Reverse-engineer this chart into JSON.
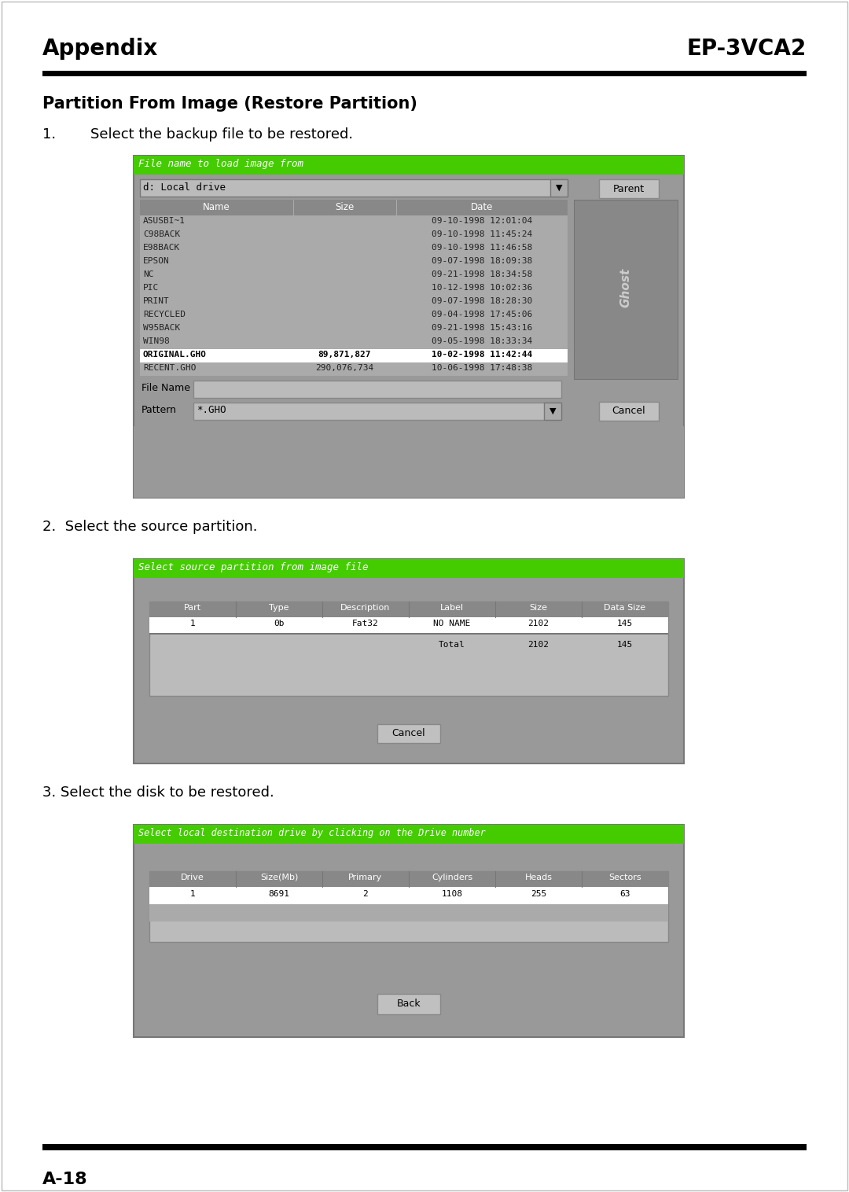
{
  "title_left": "Appendix",
  "title_right": "EP-3VCA2",
  "page_number": "A-18",
  "section_title": "Partition From Image (Restore Partition)",
  "step1_text_num": "1.",
  "step1_text_body": "Select the backup file to be restored.",
  "step2_text": "2.  Select the source partition.",
  "step3_text": "3. Select the disk to be restored.",
  "bg_color": "#ffffff",
  "header_bar_color": "#000000",
  "footer_bar_color": "#000000",
  "green_bar_color": "#44cc00",
  "gray_bg": "#999999",
  "gray_mid": "#aaaaaa",
  "gray_light": "#c0c0c0",
  "gray_dark": "#777777",
  "white": "#ffffff",
  "screenshot1": {
    "title_bar": "File name to load image from",
    "drive_label": "d: Local drive",
    "columns": [
      "Name",
      "Size",
      "Date"
    ],
    "col_dividers": [
      0.33,
      0.55
    ],
    "files": [
      [
        "ASUSBI~1",
        "",
        "09-10-1998 12:01:04"
      ],
      [
        "C98BACK",
        "",
        "09-10-1998 11:45:24"
      ],
      [
        "E98BACK",
        "",
        "09-10-1998 11:46:58"
      ],
      [
        "EPSON",
        "",
        "09-07-1998 18:09:38"
      ],
      [
        "NC",
        "",
        "09-21-1998 18:34:58"
      ],
      [
        "PIC",
        "",
        "10-12-1998 10:02:36"
      ],
      [
        "PRINT",
        "",
        "09-07-1998 18:28:30"
      ],
      [
        "RECYCLED",
        "",
        "09-04-1998 17:45:06"
      ],
      [
        "W95BACK",
        "",
        "09-21-1998 15:43:16"
      ],
      [
        "WIN98",
        "",
        "09-05-1998 18:33:34"
      ],
      [
        "ORIGINAL.GHO",
        "89,871,827",
        "10-02-1998 11:42:44"
      ],
      [
        "RECENT.GHO",
        "290,076,734",
        "10-06-1998 17:48:38"
      ]
    ],
    "selected_row": 10,
    "file_name_label": "File Name",
    "pattern_label": "Pattern",
    "pattern_value": "*.GHO",
    "button_parent": "Parent",
    "button_cancel": "Cancel"
  },
  "screenshot2": {
    "title_bar": "Select source partition from image file",
    "columns": [
      "Part",
      "Type",
      "Description",
      "Label",
      "Size",
      "Data Size"
    ],
    "rows": [
      [
        "1",
        "0b",
        "Fat32",
        "NO NAME",
        "2102",
        "145"
      ]
    ],
    "total_row": [
      "",
      "",
      "",
      "Total",
      "2102",
      "145"
    ],
    "button_cancel": "Cancel"
  },
  "screenshot3": {
    "title_bar": "Select local destination drive by clicking on the Drive number",
    "columns": [
      "Drive",
      "Size(Mb)",
      "Primary",
      "Cylinders",
      "Heads",
      "Sectors"
    ],
    "rows": [
      [
        "1",
        "8691",
        "2",
        "1108",
        "255",
        "63"
      ]
    ],
    "button_back": "Back"
  }
}
